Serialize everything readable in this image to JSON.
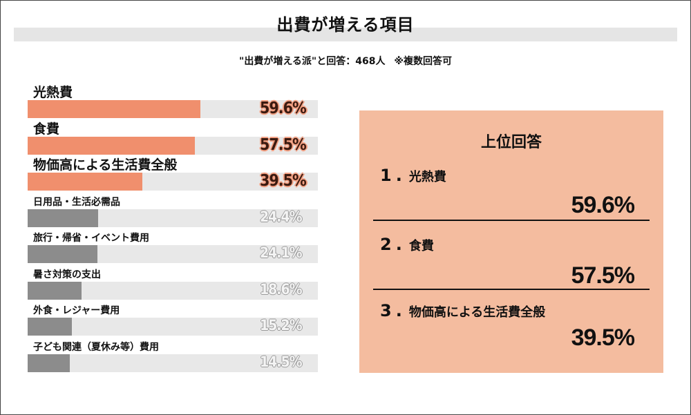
{
  "title": "出費が増える項目",
  "subtitle": {
    "respondents": "\"出費が増える派\"と回答：468人",
    "note": "※複数回答可"
  },
  "colors": {
    "highlight": "#f08f6d",
    "normal": "#8c8c8c",
    "track": "#e8e8e8",
    "panel": "#f4bc9f"
  },
  "chart_data": {
    "type": "bar",
    "orientation": "horizontal",
    "unit": "%",
    "xlim": [
      0,
      100
    ],
    "categories": [
      "光熱費",
      "食費",
      "物価高による生活費全般",
      "日用品・生活必需品",
      "旅行・帰省・イベント費用",
      "暑さ対策の支出",
      "外食・レジャー費用",
      "子ども関連（夏休み等）費用"
    ],
    "values": [
      59.6,
      57.5,
      39.5,
      24.4,
      24.1,
      18.6,
      15.2,
      14.5
    ],
    "value_labels": [
      "59.6%",
      "57.5%",
      "39.5%",
      "24.4%",
      "24.1%",
      "18.6%",
      "15.2%",
      "14.5%"
    ],
    "highlighted": [
      true,
      true,
      true,
      false,
      false,
      false,
      false,
      false
    ]
  },
  "top_panel": {
    "title": "上位回答",
    "items": [
      {
        "rank": "1",
        "label": "光熱費",
        "value": "59.6%"
      },
      {
        "rank": "2",
        "label": "食費",
        "value": "57.5%"
      },
      {
        "rank": "3",
        "label": "物価高による生活費全般",
        "value": "39.5%"
      }
    ]
  }
}
